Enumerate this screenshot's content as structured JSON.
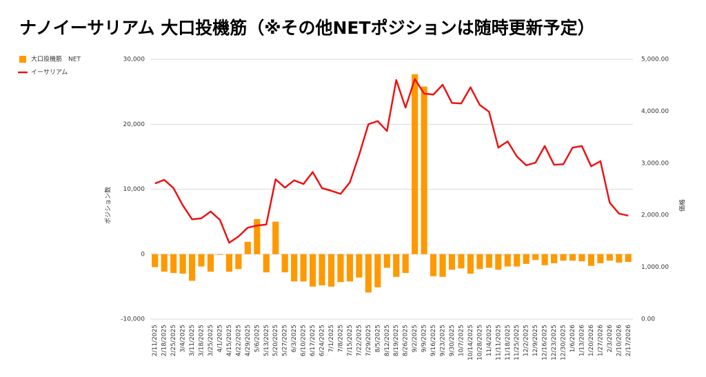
{
  "chart_data": {
    "type": "bar_line",
    "title": "ナノイーサリアム 大口投機筋（※その他NETポジションは随時更新予定）",
    "y_label": "ポジション数",
    "y2_label": "価格",
    "categories": [
      "2/11/2025",
      "2/18/2025",
      "2/25/2025",
      "3/4/2025",
      "3/11/2025",
      "3/18/2025",
      "3/25/2025",
      "4/1/2025",
      "4/15/2025",
      "4/22/2025",
      "4/29/2025",
      "5/6/2025",
      "5/13/2025",
      "5/20/2025",
      "5/27/2025",
      "6/3/2025",
      "6/10/2025",
      "6/17/2025",
      "6/24/2025",
      "7/1/2025",
      "7/8/2025",
      "7/15/2025",
      "7/22/2025",
      "7/29/2025",
      "8/5/2025",
      "8/12/2025",
      "8/19/2025",
      "8/26/2025",
      "9/2/2025",
      "9/9/2025",
      "9/16/2025",
      "9/23/2025",
      "9/30/2025",
      "10/7/2025",
      "10/14/2025",
      "10/28/2025",
      "11/4/2025",
      "11/11/2025",
      "11/18/2025",
      "11/25/2025",
      "12/2/2025",
      "12/9/2025",
      "12/16/2025",
      "12/23/2025",
      "12/30/2025",
      "1/6/2026",
      "1/13/2026",
      "1/20/2026",
      "1/27/2026",
      "2/3/2026",
      "2/10/2026",
      "2/17/2026"
    ],
    "series": [
      {
        "name": "大口投機筋　NET",
        "kind": "bar",
        "color": "#ff9900",
        "values": [
          -2000,
          -2700,
          -2900,
          -3000,
          -4100,
          -1900,
          -2700,
          -100,
          -2700,
          -2300,
          1900,
          5400,
          -2800,
          5000,
          -2800,
          -4200,
          -4200,
          -5000,
          -4800,
          -5000,
          -4300,
          -4200,
          -3600,
          -5900,
          -5100,
          -2100,
          -3500,
          -2900,
          27700,
          25800,
          -3400,
          -3500,
          -2400,
          -2200,
          -3000,
          -2300,
          -2100,
          -2400,
          -1900,
          -1900,
          -1500,
          -900,
          -1700,
          -1400,
          -1000,
          -1000,
          -1100,
          -1800,
          -1400,
          -1000,
          -1300,
          -1200
        ]
      },
      {
        "name": "イーサリアム",
        "kind": "line",
        "axis": "y2",
        "color": "#ee1111",
        "values": [
          2610,
          2680,
          2520,
          2190,
          1920,
          1940,
          2070,
          1910,
          1470,
          1590,
          1760,
          1800,
          1820,
          2690,
          2530,
          2670,
          2600,
          2830,
          2520,
          2470,
          2410,
          2630,
          3160,
          3750,
          3810,
          3620,
          4600,
          4070,
          4620,
          4340,
          4320,
          4510,
          4160,
          4150,
          4460,
          4120,
          3990,
          3300,
          3420,
          3130,
          2960,
          3010,
          3330,
          2970,
          2980,
          3300,
          3330,
          2940,
          3040,
          2240,
          2030,
          1990
        ]
      }
    ],
    "ylim": [
      -10000,
      30000
    ],
    "yticks": [
      {
        "value": -10000,
        "label": "-10,000"
      },
      0,
      {
        "value": 10000,
        "label": "10,000"
      },
      {
        "value": 20000,
        "label": "20,000"
      },
      {
        "value": 30000,
        "label": "30,000"
      }
    ],
    "y2lim": [
      0,
      5000
    ],
    "y2ticks": [
      {
        "value": 0,
        "label": "0.00"
      },
      {
        "value": 1000,
        "label": "1,000.00"
      },
      {
        "value": 2000,
        "label": "2,000.00"
      },
      {
        "value": 3000,
        "label": "3,000.00"
      },
      {
        "value": 4000,
        "label": "4,000.00"
      },
      {
        "value": 5000,
        "label": "5,000.00"
      }
    ],
    "grid": true,
    "legend": "top-left"
  }
}
